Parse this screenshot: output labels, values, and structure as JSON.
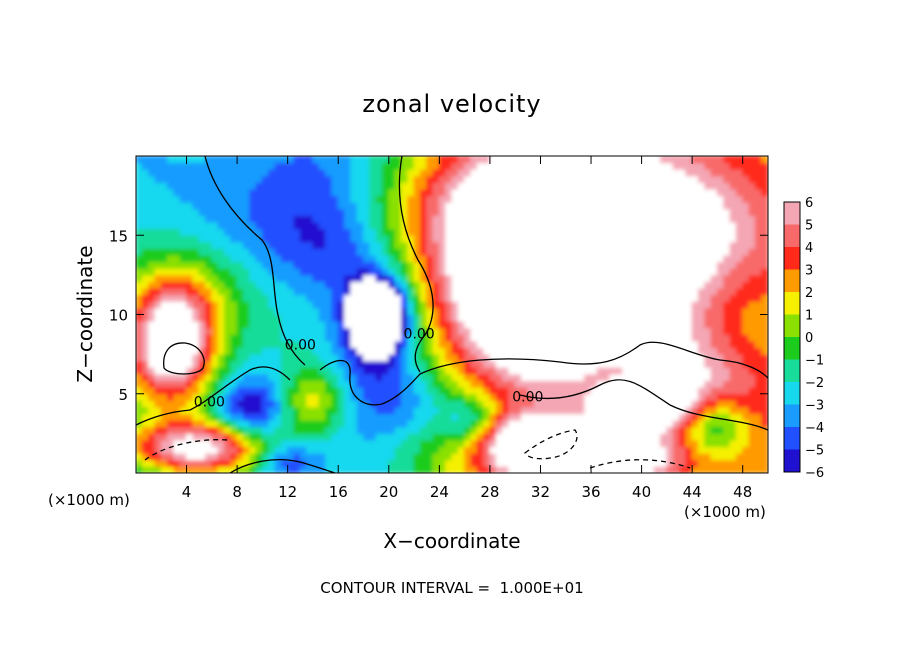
{
  "chart_data": {
    "type": "heatmap",
    "title": "zonal velocity",
    "xlabel": "X−coordinate",
    "ylabel": "Z−coordinate",
    "x_unit_left": "(×1000 m)",
    "x_unit_right": "(×1000 m)",
    "footer": "CONTOUR INTERVAL =  1.000E+01",
    "xlim": [
      0,
      50
    ],
    "ylim": [
      0,
      20
    ],
    "x_ticks": [
      4,
      8,
      12,
      16,
      20,
      24,
      28,
      32,
      36,
      40,
      44,
      48
    ],
    "x_tick_labels": [
      "4",
      "8",
      "12",
      "16",
      "20",
      "24",
      "28",
      "32",
      "36",
      "40",
      "44",
      "48"
    ],
    "y_ticks": [
      5,
      10,
      15
    ],
    "y_tick_labels": [
      "5",
      "10",
      "15"
    ],
    "colorbar": {
      "range": [
        -6,
        6
      ],
      "tick_labels": [
        "6",
        "5",
        "4",
        "3",
        "2",
        "1",
        "0",
        "−1",
        "−2",
        "−3",
        "−4",
        "−5",
        "−6"
      ],
      "colors": [
        "#f4a6b4",
        "#f86a6a",
        "#ff2a1a",
        "#ff9a00",
        "#f4f000",
        "#8ae000",
        "#1ccc1c",
        "#18dc9a",
        "#18d8ee",
        "#189cff",
        "#2050ff",
        "#2010d0",
        "#7a00b0"
      ],
      "overflow_color": "#ffffff"
    },
    "contour_labels": [
      {
        "text": "0.00",
        "x": 13.0,
        "y": 7.8
      },
      {
        "text": "0.00",
        "x": 22.4,
        "y": 8.5
      },
      {
        "text": "0.00",
        "x": 5.8,
        "y": 4.2
      },
      {
        "text": "0.00",
        "x": 31.0,
        "y": 4.5
      }
    ],
    "features": [
      {
        "x": 2.8,
        "y": 7.8,
        "v": 11,
        "rx": 3.6,
        "ry": 3.6
      },
      {
        "x": 33.0,
        "y": 10.5,
        "v": 9.5,
        "rx": 7.0,
        "ry": 4.5
      },
      {
        "x": 34.0,
        "y": 14.0,
        "v": 4.5,
        "rx": 12,
        "ry": 6
      },
      {
        "x": 30.0,
        "y": 17.5,
        "v": 4,
        "rx": 9,
        "ry": 4
      },
      {
        "x": 40.0,
        "y": 15.0,
        "v": 3.5,
        "rx": 9,
        "ry": 5
      },
      {
        "x": 43.0,
        "y": 6.0,
        "v": 3,
        "rx": 7,
        "ry": 3
      },
      {
        "x": 40.0,
        "y": 4.3,
        "v": 8,
        "rx": 3.2,
        "ry": 1.5
      },
      {
        "x": 3.5,
        "y": 11.0,
        "v": 3,
        "rx": 5,
        "ry": 3
      },
      {
        "x": 14.0,
        "y": 4.5,
        "v": 4,
        "rx": 2.5,
        "ry": 2.2
      },
      {
        "x": 5.0,
        "y": 1.6,
        "v": 9,
        "rx": 5.5,
        "ry": 1.7
      },
      {
        "x": 31.5,
        "y": 1.8,
        "v": 8,
        "rx": 4.5,
        "ry": 1.8
      },
      {
        "x": 38.0,
        "y": 1.0,
        "v": 8,
        "rx": 4.5,
        "ry": 1.5
      },
      {
        "x": 19.2,
        "y": 10.0,
        "v": -11,
        "rx": 2.0,
        "ry": 2.0
      },
      {
        "x": 19.0,
        "y": 8.0,
        "v": -3.5,
        "rx": 3.5,
        "ry": 4.5
      },
      {
        "x": 14.0,
        "y": 18.0,
        "v": -2.5,
        "rx": 6.0,
        "ry": 4.5
      },
      {
        "x": 16.0,
        "y": 14.0,
        "v": -1.5,
        "rx": 4.5,
        "ry": 3.0
      },
      {
        "x": 9.0,
        "y": 4.0,
        "v": -3.5,
        "rx": 2.5,
        "ry": 1.8
      },
      {
        "x": 26.5,
        "y": 3.2,
        "v": -4.5,
        "rx": 2.5,
        "ry": 1.8
      },
      {
        "x": 38.0,
        "y": 6.5,
        "v": -3,
        "rx": 3.5,
        "ry": 1.5
      },
      {
        "x": 46.0,
        "y": 3.0,
        "v": -4,
        "rx": 2.5,
        "ry": 1.8
      },
      {
        "x": 22.0,
        "y": 4.5,
        "v": -2.5,
        "rx": 3.5,
        "ry": 2.5
      },
      {
        "x": 12.0,
        "y": 0.8,
        "v": -3,
        "rx": 2.5,
        "ry": 1.2
      },
      {
        "x": 48.5,
        "y": 10.0,
        "v": -1,
        "rx": 3.0,
        "ry": 4.0
      }
    ]
  }
}
